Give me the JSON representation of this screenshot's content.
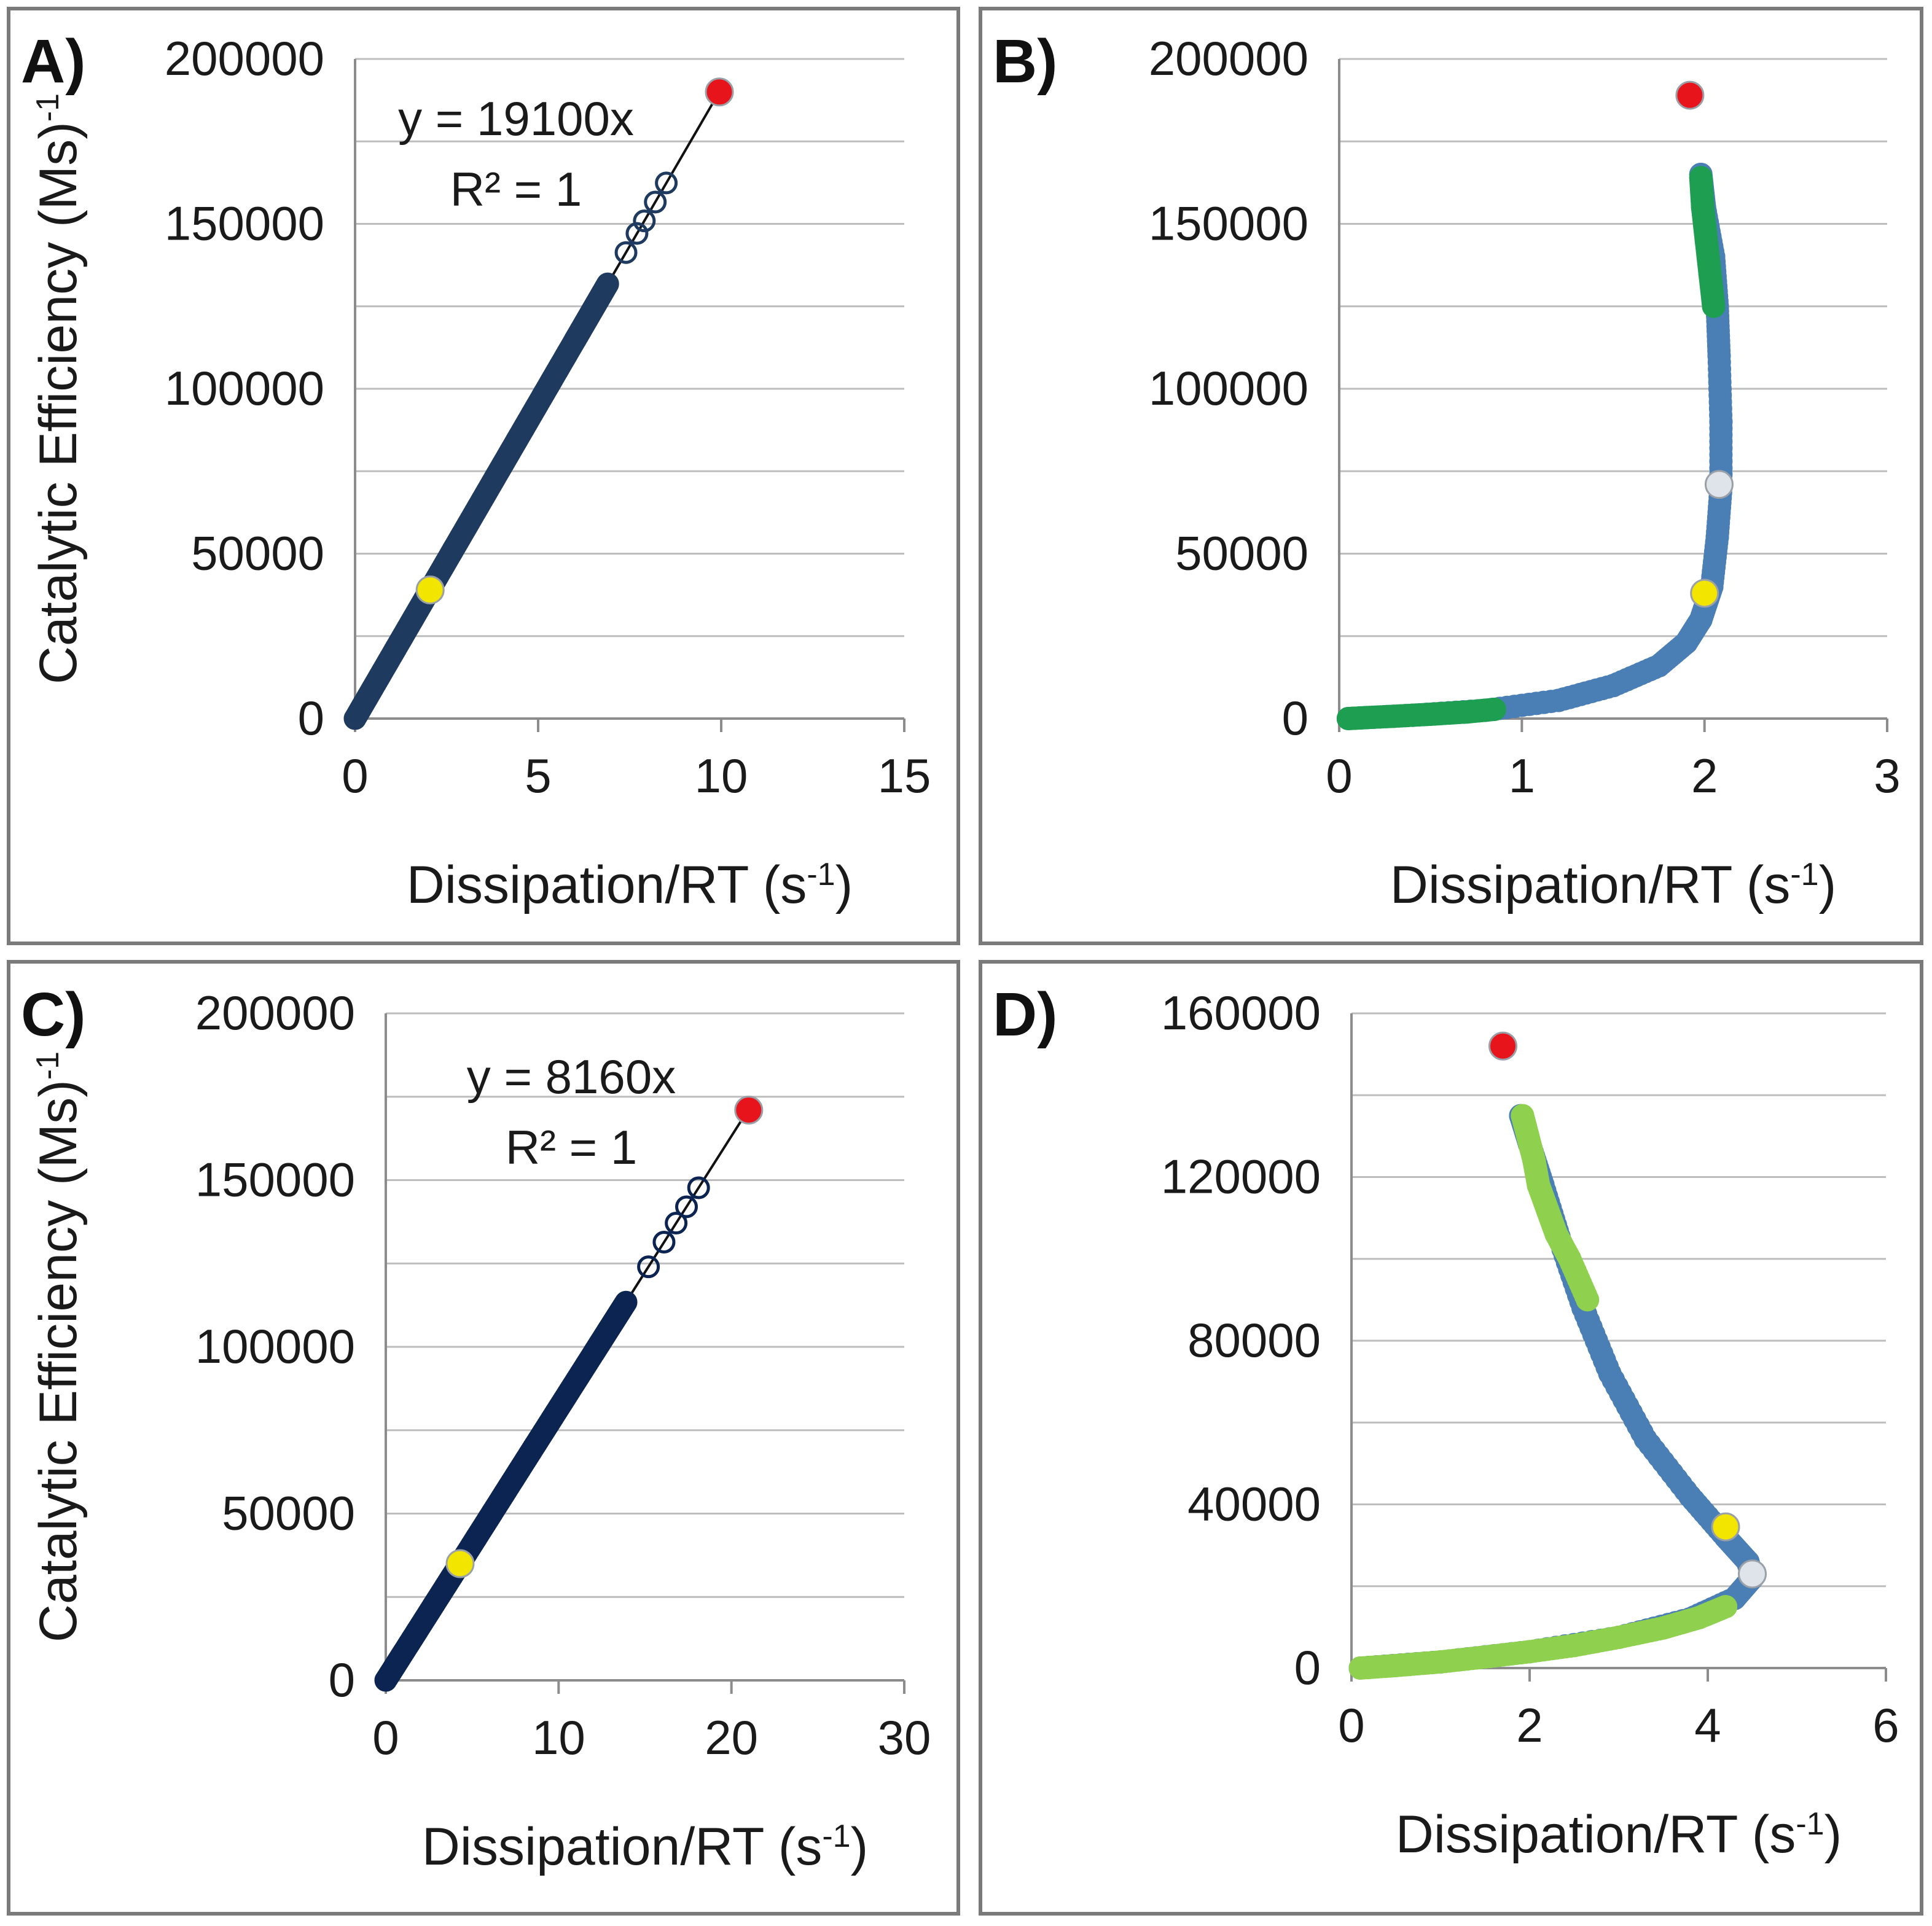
{
  "chart_data": [
    {
      "panel": "A)",
      "type": "scatter",
      "xlabel": "Dissipation/RT (s",
      "xlabel_sup": "-1",
      "xlabel_close": ")",
      "ylabel": "Catalytic  Efficiency (Ms)",
      "ylabel_sup": "-1",
      "xlim": [
        0,
        15
      ],
      "ylim": [
        0,
        200000
      ],
      "xticks": [
        "0",
        "5",
        "10",
        "15"
      ],
      "yticks": [
        "0",
        "50000",
        "100000",
        "150000",
        "200000"
      ],
      "fit": {
        "slope": 19100,
        "x_range": [
          0,
          10
        ]
      },
      "annotations": [
        "y = 19100x",
        "R² = 1"
      ],
      "series": [
        {
          "name": "data",
          "color": "#1f3a5f",
          "marker": "open-circle",
          "x": [
            0,
            2,
            4,
            6,
            6.9,
            7.4,
            7.7,
            7.9,
            8.2,
            8.5
          ],
          "y": [
            0,
            38200,
            76400,
            114600,
            131800,
            141300,
            147100,
            150900,
            156600,
            162400
          ]
        },
        {
          "name": "highlight-yellow",
          "color": "#f2e600",
          "x": [
            2.05
          ],
          "y": [
            39000
          ]
        },
        {
          "name": "highlight-red",
          "color": "#e8141b",
          "x": [
            9.95
          ],
          "y": [
            190000
          ]
        }
      ]
    },
    {
      "panel": "B)",
      "type": "scatter",
      "xlabel": "Dissipation/RT (s",
      "xlabel_sup": "-1",
      "xlabel_close": ")",
      "ylabel": "",
      "ylabel_sup": "",
      "xlim": [
        0,
        3
      ],
      "ylim": [
        0,
        200000
      ],
      "xticks": [
        "0",
        "1",
        "2",
        "3"
      ],
      "yticks": [
        "0",
        "50000",
        "100000",
        "150000",
        "200000"
      ],
      "annotations": [],
      "series": [
        {
          "name": "curve",
          "color": "#4a7fb5",
          "x": [
            0.05,
            0.4,
            0.8,
            1.2,
            1.5,
            1.75,
            1.9,
            1.98,
            2.04,
            2.07,
            2.09,
            2.09,
            2.08,
            2.07,
            2.05,
            2.0,
            1.98
          ],
          "y": [
            0,
            1000,
            2500,
            5500,
            10000,
            16000,
            23000,
            30000,
            40000,
            55000,
            70000,
            90000,
            110000,
            125000,
            140000,
            155000,
            165000
          ]
        },
        {
          "name": "low-end",
          "color": "#1e9e50",
          "x": [
            0.05,
            0.15,
            0.3,
            0.5,
            0.7,
            0.85
          ],
          "y": [
            0,
            300,
            700,
            1300,
            2000,
            2800
          ]
        },
        {
          "name": "high-end",
          "color": "#1e9e50",
          "x": [
            2.05,
            2.03,
            2.01,
            1.99,
            1.98
          ],
          "y": [
            125000,
            135000,
            145000,
            155000,
            164000
          ]
        },
        {
          "name": "highlight-gray",
          "color": "#dfe3ea",
          "x": [
            2.08
          ],
          "y": [
            71000
          ]
        },
        {
          "name": "highlight-yellow",
          "color": "#f2e600",
          "x": [
            2.0
          ],
          "y": [
            38000
          ]
        },
        {
          "name": "highlight-red",
          "color": "#e8141b",
          "x": [
            1.92
          ],
          "y": [
            189000
          ]
        }
      ]
    },
    {
      "panel": "C)",
      "type": "scatter",
      "xlabel": "Dissipation/RT (s",
      "xlabel_sup": "-1",
      "xlabel_close": ")",
      "ylabel": "Catalytic  Efficiency (Ms)",
      "ylabel_sup": "-1",
      "xlim": [
        0,
        30
      ],
      "ylim": [
        0,
        200000
      ],
      "xticks": [
        "0",
        "10",
        "20",
        "30"
      ],
      "yticks": [
        "0",
        "50000",
        "100000",
        "150000",
        "200000"
      ],
      "fit": {
        "slope": 8160,
        "x_range": [
          0,
          21
        ]
      },
      "annotations": [
        "y = 8160x",
        "R² = 1"
      ],
      "series": [
        {
          "name": "data",
          "color": "#0c2451",
          "marker": "open-circle",
          "x": [
            0,
            4,
            8,
            12,
            13.9,
            15.2,
            16.1,
            16.8,
            17.4,
            18.1
          ],
          "y": [
            0,
            32600,
            65300,
            97900,
            113400,
            124000,
            131400,
            137100,
            142000,
            147700
          ]
        },
        {
          "name": "highlight-yellow",
          "color": "#f2e600",
          "x": [
            4.3
          ],
          "y": [
            35000
          ]
        },
        {
          "name": "highlight-red",
          "color": "#e8141b",
          "x": [
            21
          ],
          "y": [
            171000
          ]
        }
      ]
    },
    {
      "panel": "D)",
      "type": "scatter",
      "xlabel": "Dissipation/RT (s",
      "xlabel_sup": "-1",
      "xlabel_close": ")",
      "ylabel": "",
      "ylabel_sup": "",
      "xlim": [
        0,
        6
      ],
      "ylim": [
        0,
        160000
      ],
      "xticks": [
        "0",
        "2",
        "4",
        "6"
      ],
      "yticks": [
        "0",
        "40000",
        "80000",
        "120000",
        "160000"
      ],
      "annotations": [],
      "series": [
        {
          "name": "curve",
          "color": "#4a7fb5",
          "x": [
            0.1,
            1.0,
            2.0,
            3.0,
            3.8,
            4.3,
            4.5,
            4.45,
            4.2,
            3.8,
            3.3,
            2.9,
            2.6,
            2.35,
            2.15,
            2.0,
            1.9
          ],
          "y": [
            0,
            1500,
            4000,
            7500,
            12000,
            17000,
            22000,
            26000,
            32000,
            42000,
            56000,
            72000,
            88000,
            104000,
            118000,
            128000,
            135000
          ]
        },
        {
          "name": "low-end",
          "color": "#8fd14f",
          "x": [
            0.1,
            0.5,
            1.0,
            1.5,
            2.0,
            2.5,
            3.0,
            3.5,
            3.9,
            4.2
          ],
          "y": [
            0,
            600,
            1500,
            2700,
            4000,
            5500,
            7500,
            9800,
            12300,
            15000
          ]
        },
        {
          "name": "high-end",
          "color": "#8fd14f",
          "x": [
            2.65,
            2.45,
            2.3,
            2.2,
            2.1,
            2.05,
            1.98,
            1.92
          ],
          "y": [
            90000,
            100000,
            106000,
            112000,
            118000,
            124000,
            130000,
            135000
          ]
        },
        {
          "name": "highlight-gray",
          "color": "#dfe3ea",
          "x": [
            4.5
          ],
          "y": [
            23000
          ]
        },
        {
          "name": "highlight-yellow",
          "color": "#f2e600",
          "x": [
            4.2
          ],
          "y": [
            34500
          ]
        },
        {
          "name": "highlight-red",
          "color": "#e8141b",
          "x": [
            1.7
          ],
          "y": [
            152000
          ]
        }
      ]
    }
  ]
}
